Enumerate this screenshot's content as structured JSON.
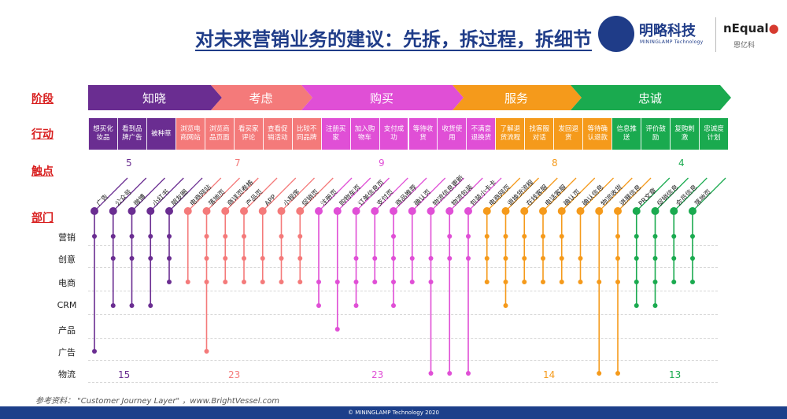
{
  "title": "对未来营销业务的建议：先拆，拆过程，拆细节",
  "logo": {
    "name": "明略科技",
    "sub": "MININGLAMP Technology",
    "brand2": "nEqual",
    "brand2_cn": "恩亿科"
  },
  "row_labels": {
    "stage": "阶段",
    "action": "行动",
    "touch": "触点",
    "dept": "部门"
  },
  "departments": [
    "营销",
    "创意",
    "电商",
    "CRM",
    "产品",
    "广告",
    "物流"
  ],
  "stages": [
    {
      "label": "知晓",
      "color": "#6a2d91",
      "touch_count": "5",
      "dept_count": "15"
    },
    {
      "label": "考虑",
      "color": "#f47a7a",
      "touch_count": "7",
      "dept_count": "23"
    },
    {
      "label": "购买",
      "color": "#e04fd6",
      "touch_count": "9",
      "dept_count": "23"
    },
    {
      "label": "服务",
      "color": "#f59a1b",
      "touch_count": "8",
      "dept_count": "14"
    },
    {
      "label": "忠诚",
      "color": "#1aaa4f",
      "touch_count": "4",
      "dept_count": "13"
    }
  ],
  "actions": [
    {
      "label": "想买化妆品",
      "stage": 0
    },
    {
      "label": "看到品牌广告",
      "stage": 0
    },
    {
      "label": "被种草",
      "stage": 0
    },
    {
      "label": "浏览电商网站",
      "stage": 1
    },
    {
      "label": "浏览商品页面",
      "stage": 1
    },
    {
      "label": "看买家评论",
      "stage": 1
    },
    {
      "label": "查看促销活动",
      "stage": 1
    },
    {
      "label": "比较不同品牌",
      "stage": 1
    },
    {
      "label": "注册买家",
      "stage": 2
    },
    {
      "label": "加入购物车",
      "stage": 2
    },
    {
      "label": "支付成功",
      "stage": 2
    },
    {
      "label": "等待收货",
      "stage": 2
    },
    {
      "label": "收货使用",
      "stage": 2
    },
    {
      "label": "不满意退换货",
      "stage": 2
    },
    {
      "label": "了解退货流程",
      "stage": 3
    },
    {
      "label": "找客服对话",
      "stage": 3
    },
    {
      "label": "发回退货",
      "stage": 3
    },
    {
      "label": "等待确认退款",
      "stage": 3
    },
    {
      "label": "信息推送",
      "stage": 4
    },
    {
      "label": "评价鼓励",
      "stage": 4
    },
    {
      "label": "复购刺激",
      "stage": 4
    },
    {
      "label": "忠诚度计划",
      "stage": 4
    }
  ],
  "touchpoints": [
    {
      "label": "广告",
      "stage": 0,
      "depts": [
        0,
        5
      ]
    },
    {
      "label": "公众号",
      "stage": 0,
      "depts": [
        0,
        1,
        3
      ]
    },
    {
      "label": "微博",
      "stage": 0,
      "depts": [
        0,
        1,
        3
      ]
    },
    {
      "label": "小红书",
      "stage": 0,
      "depts": [
        0,
        1,
        3
      ]
    },
    {
      "label": "朋友圈",
      "stage": 0,
      "depts": [
        0,
        1,
        2
      ]
    },
    {
      "label": "电商网站",
      "stage": 1,
      "depts": [
        2
      ]
    },
    {
      "label": "落地页",
      "stage": 1,
      "depts": [
        0,
        1,
        2,
        5
      ]
    },
    {
      "label": "商详页卷格",
      "stage": 1,
      "depts": [
        0,
        1,
        2
      ]
    },
    {
      "label": "产品页",
      "stage": 1,
      "depts": [
        0,
        1,
        2
      ]
    },
    {
      "label": "APP",
      "stage": 1,
      "depts": [
        1,
        2
      ]
    },
    {
      "label": "小程序",
      "stage": 1,
      "depts": [
        0,
        1,
        2
      ]
    },
    {
      "label": "促销页",
      "stage": 1,
      "depts": [
        0,
        1,
        2
      ]
    },
    {
      "label": "注册页",
      "stage": 2,
      "depts": [
        2,
        3
      ]
    },
    {
      "label": "购物车页",
      "stage": 2,
      "depts": [
        2,
        4
      ]
    },
    {
      "label": "订单信息页",
      "stage": 2,
      "depts": [
        1,
        2,
        3
      ]
    },
    {
      "label": "支付页",
      "stage": 2,
      "depts": [
        1,
        2
      ]
    },
    {
      "label": "商品推荐",
      "stage": 2,
      "depts": [
        0,
        1,
        2,
        3
      ]
    },
    {
      "label": "确认页",
      "stage": 2,
      "depts": [
        1,
        2
      ]
    },
    {
      "label": "物流信息更新",
      "stage": 2,
      "depts": [
        1,
        2,
        6
      ]
    },
    {
      "label": "物流包装",
      "stage": 2,
      "depts": [
        0,
        1,
        6
      ]
    },
    {
      "label": "包装小卡卡",
      "stage": 2,
      "depts": [
        0,
        1,
        6
      ]
    },
    {
      "label": "电商网页",
      "stage": 3,
      "depts": [
        0,
        1,
        2
      ]
    },
    {
      "label": "退换货流程",
      "stage": 3,
      "depts": [
        0,
        1,
        2,
        3
      ]
    },
    {
      "label": "在线客服",
      "stage": 3,
      "depts": [
        0,
        1,
        2
      ]
    },
    {
      "label": "电话客服",
      "stage": 3,
      "depts": [
        0,
        1,
        2
      ]
    },
    {
      "label": "确认页",
      "stage": 3,
      "depts": [
        0,
        1,
        2
      ]
    },
    {
      "label": "确认信息",
      "stage": 3,
      "depts": [
        1,
        2
      ]
    },
    {
      "label": "物流收货",
      "stage": 3,
      "depts": [
        2,
        6
      ]
    },
    {
      "label": "进展信息",
      "stage": 3,
      "depts": [
        0,
        1,
        2,
        6
      ]
    },
    {
      "label": "PR文章",
      "stage": 4,
      "depts": [
        0,
        1,
        2,
        3
      ]
    },
    {
      "label": "促销信息",
      "stage": 4,
      "depts": [
        0,
        1,
        2,
        3
      ]
    },
    {
      "label": "会员信息",
      "stage": 4,
      "depts": [
        0,
        1,
        2
      ]
    },
    {
      "label": "落地页",
      "stage": 4,
      "depts": [
        0,
        1,
        2
      ]
    }
  ],
  "footer": {
    "reference": "参考资料：  \"Customer Journey Layer\"  ，www.BrightVessel.com",
    "copyright": "© MININGLAMP Technology 2020"
  }
}
